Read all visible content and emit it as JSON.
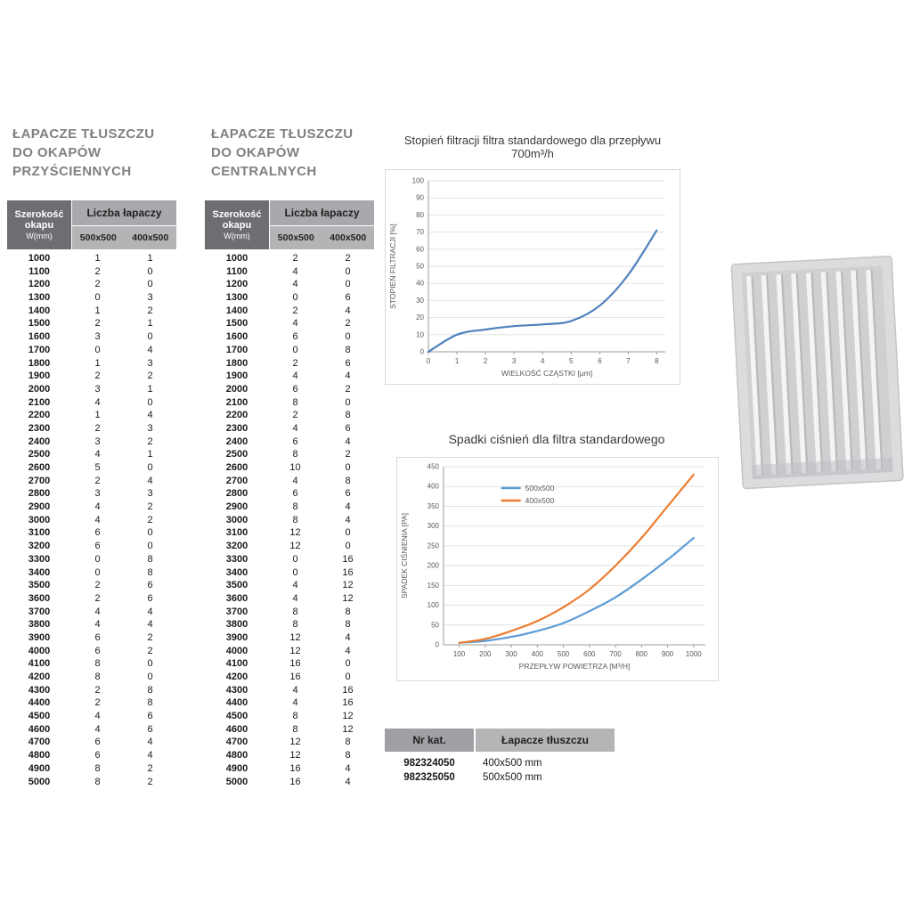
{
  "left_table": {
    "title_lines": [
      "ŁAPACZE TŁUSZCZU",
      "DO OKAPÓW",
      "PRZYŚCIENNYCH"
    ],
    "header": {
      "width_label": "Szerokość okapu",
      "width_unit": "W(mm)",
      "group_label": "Liczba łapaczy",
      "col_a": "500x500",
      "col_b": "400x500"
    },
    "rows": [
      [
        1000,
        1,
        1
      ],
      [
        1100,
        2,
        0
      ],
      [
        1200,
        2,
        0
      ],
      [
        1300,
        0,
        3
      ],
      [
        1400,
        1,
        2
      ],
      [
        1500,
        2,
        1
      ],
      [
        1600,
        3,
        0
      ],
      [
        1700,
        0,
        4
      ],
      [
        1800,
        1,
        3
      ],
      [
        1900,
        2,
        2
      ],
      [
        2000,
        3,
        1
      ],
      [
        2100,
        4,
        0
      ],
      [
        2200,
        1,
        4
      ],
      [
        2300,
        2,
        3
      ],
      [
        2400,
        3,
        2
      ],
      [
        2500,
        4,
        1
      ],
      [
        2600,
        5,
        0
      ],
      [
        2700,
        2,
        4
      ],
      [
        2800,
        3,
        3
      ],
      [
        2900,
        4,
        2
      ],
      [
        3000,
        4,
        2
      ],
      [
        3100,
        6,
        0
      ],
      [
        3200,
        6,
        0
      ],
      [
        3300,
        0,
        8
      ],
      [
        3400,
        0,
        8
      ],
      [
        3500,
        2,
        6
      ],
      [
        3600,
        2,
        6
      ],
      [
        3700,
        4,
        4
      ],
      [
        3800,
        4,
        4
      ],
      [
        3900,
        6,
        2
      ],
      [
        4000,
        6,
        2
      ],
      [
        4100,
        8,
        0
      ],
      [
        4200,
        8,
        0
      ],
      [
        4300,
        2,
        8
      ],
      [
        4400,
        2,
        8
      ],
      [
        4500,
        4,
        6
      ],
      [
        4600,
        4,
        6
      ],
      [
        4700,
        6,
        4
      ],
      [
        4800,
        6,
        4
      ],
      [
        4900,
        8,
        2
      ],
      [
        5000,
        8,
        2
      ]
    ]
  },
  "center_table": {
    "title_lines": [
      "ŁAPACZE TŁUSZCZU",
      "DO OKAPÓW",
      "CENTRALNYCH"
    ],
    "header": {
      "width_label": "Szerokość okapu",
      "width_unit": "W(mm)",
      "group_label": "Liczba łapaczy",
      "col_a": "500x500",
      "col_b": "400x500"
    },
    "rows": [
      [
        1000,
        2,
        2
      ],
      [
        1100,
        4,
        0
      ],
      [
        1200,
        4,
        0
      ],
      [
        1300,
        0,
        6
      ],
      [
        1400,
        2,
        4
      ],
      [
        1500,
        4,
        2
      ],
      [
        1600,
        6,
        0
      ],
      [
        1700,
        0,
        8
      ],
      [
        1800,
        2,
        6
      ],
      [
        1900,
        4,
        4
      ],
      [
        2000,
        6,
        2
      ],
      [
        2100,
        8,
        0
      ],
      [
        2200,
        2,
        8
      ],
      [
        2300,
        4,
        6
      ],
      [
        2400,
        6,
        4
      ],
      [
        2500,
        8,
        2
      ],
      [
        2600,
        10,
        0
      ],
      [
        2700,
        4,
        8
      ],
      [
        2800,
        6,
        6
      ],
      [
        2900,
        8,
        4
      ],
      [
        3000,
        8,
        4
      ],
      [
        3100,
        12,
        0
      ],
      [
        3200,
        12,
        0
      ],
      [
        3300,
        0,
        16
      ],
      [
        3400,
        0,
        16
      ],
      [
        3500,
        4,
        12
      ],
      [
        3600,
        4,
        12
      ],
      [
        3700,
        8,
        8
      ],
      [
        3800,
        8,
        8
      ],
      [
        3900,
        12,
        4
      ],
      [
        4000,
        12,
        4
      ],
      [
        4100,
        16,
        0
      ],
      [
        4200,
        16,
        0
      ],
      [
        4300,
        4,
        16
      ],
      [
        4400,
        4,
        16
      ],
      [
        4500,
        8,
        12
      ],
      [
        4600,
        8,
        12
      ],
      [
        4700,
        12,
        8
      ],
      [
        4800,
        12,
        8
      ],
      [
        4900,
        16,
        4
      ],
      [
        5000,
        16,
        4
      ]
    ]
  },
  "chart_data": [
    {
      "type": "line",
      "title": "Stopień filtracji filtra standardowego dla przepływu 700m³/h",
      "xlabel": "WIELKOŚĆ CZĄSTKI [μm]",
      "ylabel": "STOPIEŃ FILTRACJI [%]",
      "xlim": [
        0,
        8.3
      ],
      "ylim": [
        0,
        100
      ],
      "ystep": 10,
      "xticks": [
        0,
        1,
        2,
        3,
        4,
        5,
        6,
        7,
        8
      ],
      "grid": "horizontal",
      "legend": false,
      "series": [
        {
          "name": "",
          "color": "#4f81bd",
          "x": [
            0,
            1,
            2,
            3,
            4,
            5,
            6,
            7,
            8
          ],
          "y": [
            0,
            10,
            13,
            15,
            16,
            18,
            27,
            45,
            71
          ]
        }
      ]
    },
    {
      "type": "line",
      "title": "Spadki ciśnień dla filtra standardowego",
      "xlabel": "PRZEPŁYW POWIETRZA [M³/H]",
      "ylabel": "SPADEK CIŚNIENIA [PA]",
      "xlim": [
        40,
        1045
      ],
      "ylim": [
        0,
        450
      ],
      "ystep": 50,
      "xticks": [
        100,
        200,
        300,
        400,
        500,
        600,
        700,
        800,
        900,
        1000
      ],
      "grid": "horizontal",
      "legend": true,
      "series": [
        {
          "name": "500x500",
          "color": "#5b9bd5",
          "x": [
            100,
            200,
            300,
            400,
            500,
            600,
            700,
            800,
            900,
            1000
          ],
          "y": [
            5,
            10,
            20,
            35,
            55,
            85,
            120,
            165,
            215,
            270
          ]
        },
        {
          "name": "400x500",
          "color": "#ed7d31",
          "x": [
            100,
            200,
            300,
            400,
            500,
            600,
            700,
            800,
            900,
            1000
          ],
          "y": [
            5,
            15,
            35,
            60,
            95,
            140,
            200,
            270,
            350,
            430
          ]
        }
      ]
    }
  ],
  "catalog_table": {
    "header_nr": "Nr kat.",
    "header_name": "Łapacze tłuszczu",
    "rows": [
      [
        "982324050",
        "400x500 mm"
      ],
      [
        "982325050",
        "500x500 mm"
      ]
    ]
  }
}
